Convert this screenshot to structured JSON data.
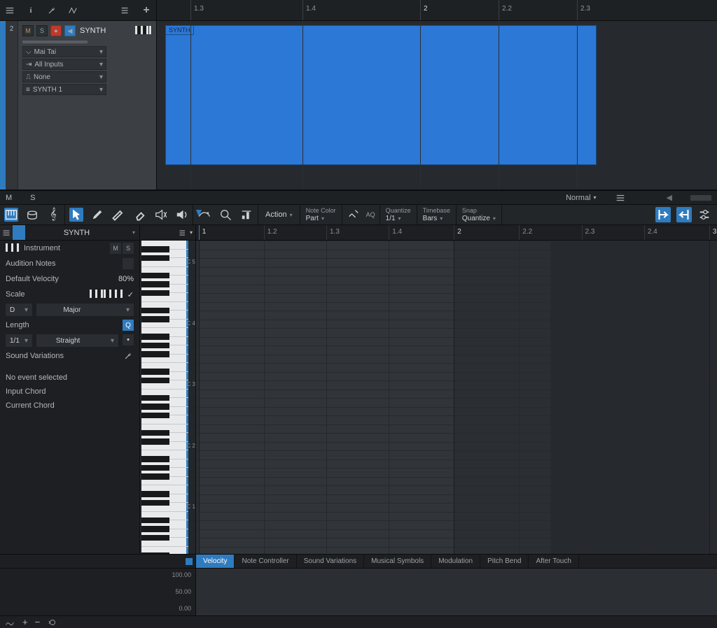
{
  "colors": {
    "accent": "#2f7bbf",
    "clip": "#2b78d7",
    "bg": "#1e2124",
    "panel": "#1d1f22"
  },
  "arrange": {
    "ruler_ticks": [
      {
        "pos_pct": 6,
        "label": "1.3",
        "big": false
      },
      {
        "pos_pct": 26,
        "label": "1.4",
        "big": false
      },
      {
        "pos_pct": 47,
        "label": "2",
        "big": true
      },
      {
        "pos_pct": 61,
        "label": "2.2",
        "big": false
      },
      {
        "pos_pct": 75,
        "label": "2.3",
        "big": false
      }
    ],
    "track": {
      "number": "2",
      "name": "SYNTH",
      "mute": "M",
      "solo": "S",
      "instrument": "Mai Tai",
      "input": "All Inputs",
      "output": "None",
      "channel": "SYNTH 1"
    },
    "clip": {
      "label": "SYNTH",
      "left_pct": 1.5,
      "width_pct": 77
    },
    "status": {
      "m": "M",
      "s": "S",
      "automation_mode": "Normal"
    }
  },
  "editor": {
    "action_label": "Action",
    "note_color": {
      "label": "Note Color",
      "value": "Part"
    },
    "aq_label": "AQ",
    "quantize": {
      "label": "Quantize",
      "value": "1/1"
    },
    "timebase": {
      "label": "Timebase",
      "value": "Bars"
    },
    "snap": {
      "label": "Snap",
      "value": "Quantize"
    },
    "title": "SYNTH",
    "ruler_ticks": [
      {
        "pos_pct": 0.5,
        "label": "1",
        "big": true
      },
      {
        "pos_pct": 13,
        "label": "1.2",
        "big": false
      },
      {
        "pos_pct": 25,
        "label": "1.3",
        "big": false
      },
      {
        "pos_pct": 37,
        "label": "1.4",
        "big": false
      },
      {
        "pos_pct": 49.5,
        "label": "2",
        "big": true
      },
      {
        "pos_pct": 62,
        "label": "2.2",
        "big": false
      },
      {
        "pos_pct": 74,
        "label": "2.3",
        "big": false
      },
      {
        "pos_pct": 86,
        "label": "2.4",
        "big": false
      },
      {
        "pos_pct": 98.5,
        "label": "3",
        "big": true
      }
    ],
    "clip_region": {
      "left_pct": 0.5,
      "width_pct": 49,
      "right_shade_from_pct": 68
    }
  },
  "inspector": {
    "instrument_label": "Instrument",
    "m": "M",
    "s": "S",
    "audition_label": "Audition Notes",
    "velocity_label": "Default Velocity",
    "velocity_value": "80%",
    "scale_label": "Scale",
    "scale_root": "D",
    "scale_type": "Major",
    "length_label": "Length",
    "length_value": "1/1",
    "length_feel": "Straight",
    "variations_label": "Sound Variations",
    "no_event": "No event selected",
    "input_chord_label": "Input Chord",
    "current_chord_label": "Current Chord"
  },
  "piano": {
    "white_key_h": 12.5,
    "octaves": [
      "C 5",
      "C 4",
      "C 3",
      "C 2",
      "C 1"
    ],
    "num_white_keys": 36
  },
  "cc": {
    "tabs": [
      "Velocity",
      "Note Controller",
      "Sound Variations",
      "Musical Symbols",
      "Modulation",
      "Pitch Bend",
      "After Touch"
    ],
    "active_tab": 0,
    "scale": [
      "100.00",
      "50.00",
      "0.00"
    ]
  }
}
